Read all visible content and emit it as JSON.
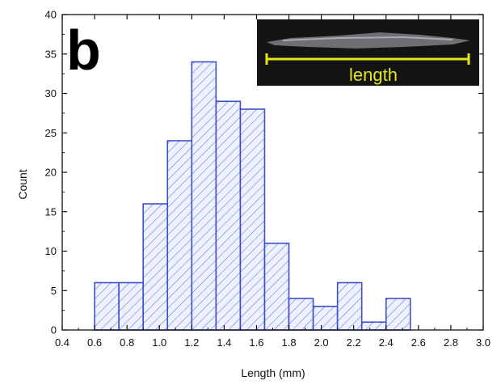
{
  "panel_label": "b",
  "inset": {
    "caption": "length"
  },
  "colors": {
    "bar_stroke": "#3f4fcc",
    "bar_fill": "#eef1ff",
    "hatch": "#6f7de0",
    "inset_bg": "#141414",
    "inset_accent": "#e3e61a"
  },
  "chart_data": {
    "type": "bar",
    "subtype": "histogram",
    "title": "",
    "xlabel": "Length (mm)",
    "ylabel": "Count",
    "xlim": [
      0.4,
      3.0
    ],
    "ylim": [
      0,
      40
    ],
    "xticks": [
      "0.4",
      "0.6",
      "0.8",
      "1.0",
      "1.2",
      "1.4",
      "1.6",
      "1.8",
      "2.0",
      "2.2",
      "2.4",
      "2.6",
      "2.8",
      "3.0"
    ],
    "yticks": [
      "0",
      "5",
      "10",
      "15",
      "20",
      "25",
      "30",
      "35",
      "40"
    ],
    "bin_width": 0.15,
    "bins": [
      {
        "start": 0.6,
        "end": 0.75,
        "count": 6
      },
      {
        "start": 0.75,
        "end": 0.9,
        "count": 6
      },
      {
        "start": 0.9,
        "end": 1.05,
        "count": 16
      },
      {
        "start": 1.05,
        "end": 1.2,
        "count": 24
      },
      {
        "start": 1.2,
        "end": 1.35,
        "count": 34
      },
      {
        "start": 1.35,
        "end": 1.5,
        "count": 29
      },
      {
        "start": 1.5,
        "end": 1.65,
        "count": 28
      },
      {
        "start": 1.65,
        "end": 1.8,
        "count": 11
      },
      {
        "start": 1.8,
        "end": 1.95,
        "count": 4
      },
      {
        "start": 1.95,
        "end": 2.1,
        "count": 3
      },
      {
        "start": 2.1,
        "end": 2.25,
        "count": 6
      },
      {
        "start": 2.25,
        "end": 2.4,
        "count": 1
      },
      {
        "start": 2.4,
        "end": 2.55,
        "count": 4
      }
    ],
    "grid": false,
    "legend": "none"
  }
}
